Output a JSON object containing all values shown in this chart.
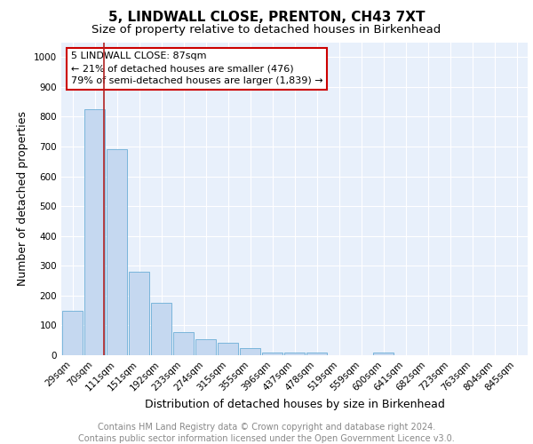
{
  "title1": "5, LINDWALL CLOSE, PRENTON, CH43 7XT",
  "title2": "Size of property relative to detached houses in Birkenhead",
  "xlabel": "Distribution of detached houses by size in Birkenhead",
  "ylabel": "Number of detached properties",
  "categories": [
    "29sqm",
    "70sqm",
    "111sqm",
    "151sqm",
    "192sqm",
    "233sqm",
    "274sqm",
    "315sqm",
    "355sqm",
    "396sqm",
    "437sqm",
    "478sqm",
    "519sqm",
    "559sqm",
    "600sqm",
    "641sqm",
    "682sqm",
    "723sqm",
    "763sqm",
    "804sqm",
    "845sqm"
  ],
  "bar_heights": [
    150,
    825,
    690,
    280,
    175,
    78,
    53,
    43,
    24,
    10,
    10,
    10,
    0,
    0,
    10,
    0,
    0,
    0,
    0,
    0,
    0
  ],
  "bar_color": "#c5d8f0",
  "bar_edge_color": "#6baed6",
  "background_color": "#e8f0fb",
  "grid_color": "#ffffff",
  "vline_x": 1.42,
  "vline_color": "#b22222",
  "annotation_text": "5 LINDWALL CLOSE: 87sqm\n← 21% of detached houses are smaller (476)\n79% of semi-detached houses are larger (1,839) →",
  "annotation_box_color": "#cc0000",
  "ylim": [
    0,
    1050
  ],
  "yticks": [
    0,
    100,
    200,
    300,
    400,
    500,
    600,
    700,
    800,
    900,
    1000
  ],
  "footer1": "Contains HM Land Registry data © Crown copyright and database right 2024.",
  "footer2": "Contains public sector information licensed under the Open Government Licence v3.0.",
  "title1_fontsize": 11,
  "title2_fontsize": 9.5,
  "xlabel_fontsize": 9,
  "ylabel_fontsize": 9,
  "footer_fontsize": 7,
  "footer_color": "#888888",
  "tick_fontsize": 7.5
}
